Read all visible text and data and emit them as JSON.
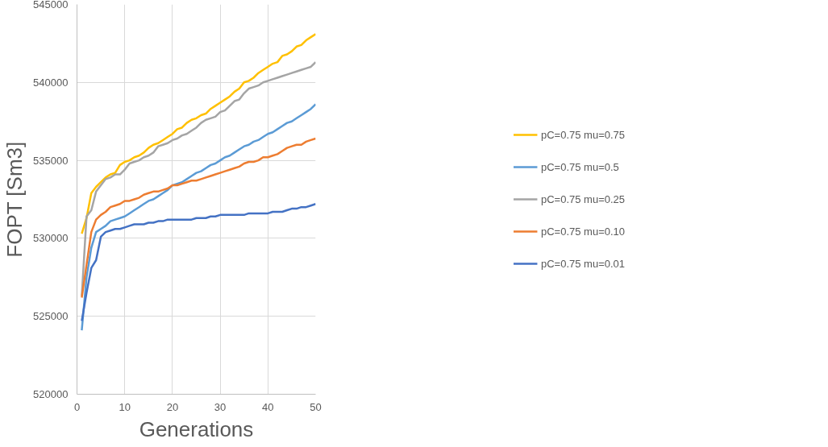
{
  "chart_data": {
    "type": "line",
    "xlabel": "Generations",
    "ylabel": "FOPT [Sm3]",
    "xlim": [
      0,
      50
    ],
    "xticks": [
      0,
      10,
      20,
      30,
      40,
      50
    ],
    "ylim": [
      520000,
      545000
    ],
    "yticks": [
      520000,
      525000,
      530000,
      535000,
      540000,
      545000
    ],
    "grid": true,
    "legend": "right",
    "marker": "none",
    "line_style": "solid",
    "x": [
      1,
      2,
      3,
      4,
      5,
      6,
      7,
      8,
      9,
      10,
      11,
      12,
      13,
      14,
      15,
      16,
      17,
      18,
      19,
      20,
      21,
      22,
      23,
      24,
      25,
      26,
      27,
      28,
      29,
      30,
      31,
      32,
      33,
      34,
      35,
      36,
      37,
      38,
      39,
      40,
      41,
      42,
      43,
      44,
      45,
      46,
      47,
      48,
      49,
      50
    ],
    "series": [
      {
        "name": "pC=0.75 mu=0.75",
        "color": "#ffc000",
        "values": [
          530300,
          531300,
          532900,
          533300,
          533600,
          533900,
          534100,
          534200,
          534700,
          534900,
          535000,
          535200,
          535300,
          535500,
          535800,
          536000,
          536100,
          536300,
          536500,
          536700,
          537000,
          537100,
          537400,
          537600,
          537700,
          537900,
          538000,
          538300,
          538500,
          538700,
          538900,
          539100,
          539400,
          539600,
          540000,
          540100,
          540300,
          540600,
          540800,
          541000,
          541200,
          541300,
          541700,
          541800,
          542000,
          542300,
          542400,
          542700,
          542900,
          543100
        ]
      },
      {
        "name": "pC=0.75 mu=0.5",
        "color": "#5b9bd5",
        "values": [
          524100,
          527500,
          529400,
          530400,
          530600,
          530800,
          531100,
          531200,
          531300,
          531400,
          531600,
          531800,
          532000,
          532200,
          532400,
          532500,
          532700,
          532900,
          533100,
          533400,
          533500,
          533600,
          533800,
          534000,
          534200,
          534300,
          534500,
          534700,
          534800,
          535000,
          535200,
          535300,
          535500,
          535700,
          535900,
          536000,
          536200,
          536300,
          536500,
          536700,
          536800,
          537000,
          537200,
          537400,
          537500,
          537700,
          537900,
          538100,
          538300,
          538600
        ]
      },
      {
        "name": "pC=0.75 mu=0.25",
        "color": "#a5a5a5",
        "values": [
          526300,
          531400,
          531800,
          533000,
          533400,
          533800,
          533900,
          534100,
          534100,
          534400,
          534800,
          534900,
          535000,
          535200,
          535300,
          535500,
          535900,
          536000,
          536100,
          536300,
          536400,
          536600,
          536700,
          536900,
          537100,
          537400,
          537600,
          537700,
          537800,
          538100,
          538200,
          538500,
          538800,
          538900,
          539300,
          539600,
          539700,
          539800,
          540000,
          540100,
          540200,
          540300,
          540400,
          540500,
          540600,
          540700,
          540800,
          540900,
          541000,
          541300
        ]
      },
      {
        "name": "pC=0.75 mu=0.10",
        "color": "#ed7d31",
        "values": [
          526200,
          528300,
          530400,
          531200,
          531500,
          531700,
          532000,
          532100,
          532200,
          532400,
          532400,
          532500,
          532600,
          532800,
          532900,
          533000,
          533000,
          533100,
          533200,
          533400,
          533400,
          533500,
          533600,
          533700,
          533700,
          533800,
          533900,
          534000,
          534100,
          534200,
          534300,
          534400,
          534500,
          534600,
          534800,
          534900,
          534900,
          535000,
          535200,
          535200,
          535300,
          535400,
          535600,
          535800,
          535900,
          536000,
          536000,
          536200,
          536300,
          536400
        ]
      },
      {
        "name": "pC=0.75 mu=0.01",
        "color": "#4472c4",
        "values": [
          524700,
          526500,
          528100,
          528600,
          530100,
          530400,
          530500,
          530600,
          530600,
          530700,
          530800,
          530900,
          530900,
          530900,
          531000,
          531000,
          531100,
          531100,
          531200,
          531200,
          531200,
          531200,
          531200,
          531200,
          531300,
          531300,
          531300,
          531400,
          531400,
          531500,
          531500,
          531500,
          531500,
          531500,
          531500,
          531600,
          531600,
          531600,
          531600,
          531600,
          531700,
          531700,
          531700,
          531800,
          531900,
          531900,
          532000,
          532000,
          532100,
          532200
        ]
      }
    ]
  }
}
